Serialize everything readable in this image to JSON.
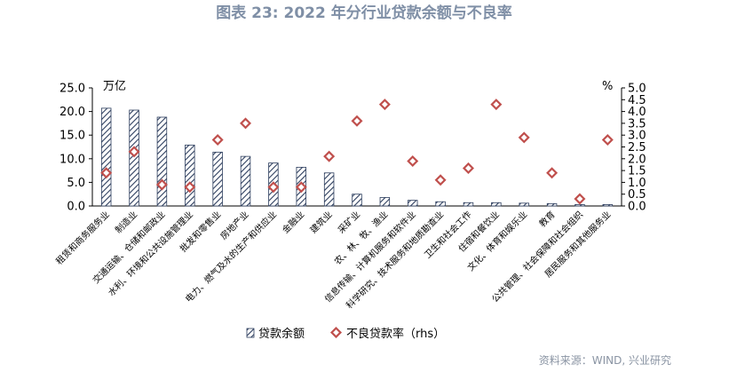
{
  "title": "图表 23: 2022 年分行业贷款余额与不良率",
  "source": "资料来源：WIND, 兴业研究",
  "colors": {
    "bar_stroke": "#2d3e5e",
    "marker": "#c0504d",
    "title": "#7f8fa6",
    "source": "#8a94a3"
  },
  "chart_data": {
    "type": "bar",
    "left_unit": "万亿",
    "right_unit": "%",
    "left_ylim": [
      0,
      25
    ],
    "right_ylim": [
      0,
      5
    ],
    "left_ticks": [
      "25.0",
      "20.0",
      "15.0",
      "10.0",
      "5.0",
      "0.0"
    ],
    "right_ticks": [
      "5.0",
      "4.5",
      "4.0",
      "3.5",
      "3.0",
      "2.5",
      "2.0",
      "1.5",
      "1.0",
      "0.5",
      "0.0"
    ],
    "grid": false,
    "legend_position": "bottom",
    "categories": [
      "租赁和商务服务业",
      "制造业",
      "交通运输、仓储和邮政业",
      "水利、环境和公共设施管理业",
      "批发和零售业",
      "房地产业",
      "电力、燃气及水的生产和供应业",
      "金融业",
      "建筑业",
      "采矿业",
      "农、林、牧、渔业",
      "信息传输、计算机服务和软件业",
      "科学研究、技术服务和地质勘查业",
      "卫生和社会工作",
      "住宿和餐饮业",
      "文化、体育和娱乐业",
      "教育",
      "公共管理、社会保障和社会组织",
      "居民服务和其他服务业"
    ],
    "series": [
      {
        "name": "贷款余额",
        "type": "bar",
        "axis": "left",
        "values": [
          20.7,
          20.3,
          18.8,
          12.9,
          11.4,
          10.5,
          9.1,
          8.2,
          7.0,
          2.5,
          1.8,
          1.2,
          0.9,
          0.7,
          0.7,
          0.6,
          0.5,
          0.3,
          0.3
        ]
      },
      {
        "name": "不良贷款率（rhs）",
        "type": "scatter",
        "axis": "right",
        "values": [
          1.4,
          2.3,
          0.9,
          0.8,
          2.8,
          3.5,
          0.8,
          0.8,
          2.1,
          3.6,
          4.3,
          1.9,
          1.1,
          1.6,
          4.3,
          2.9,
          1.4,
          0.3,
          2.8
        ]
      }
    ]
  }
}
